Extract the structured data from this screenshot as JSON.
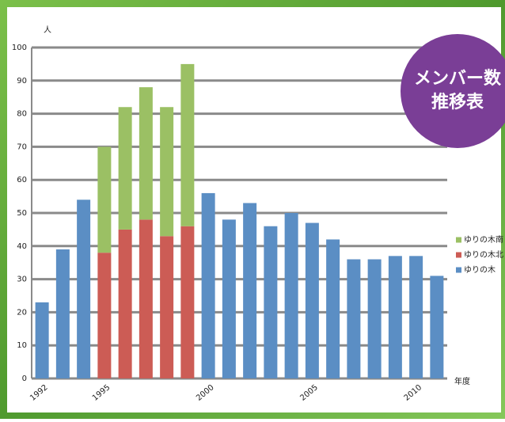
{
  "chart_data": {
    "type": "stacked_bar",
    "title": "メンバー数",
    "subtitle": "推移表",
    "y_label": "人",
    "x_label": "年度",
    "categories": [
      "1992",
      null,
      null,
      "1995",
      null,
      null,
      null,
      null,
      "2000",
      null,
      null,
      null,
      null,
      "2005",
      null,
      null,
      null,
      null,
      "2010",
      null
    ],
    "series": [
      {
        "name": "ゆりの木",
        "color": "#5b8ec4",
        "values": [
          23,
          39,
          54,
          null,
          null,
          null,
          null,
          null,
          56,
          48,
          53,
          46,
          50,
          47,
          42,
          36,
          36,
          37,
          37,
          31
        ]
      },
      {
        "name": "ゆりの木北",
        "color": "#cc5c55",
        "values": [
          null,
          null,
          null,
          38,
          45,
          48,
          43,
          46,
          null,
          null,
          null,
          null,
          null,
          null,
          null,
          null,
          null,
          null,
          null,
          null
        ]
      },
      {
        "name": "ゆりの木南",
        "color": "#9bc064",
        "values": [
          null,
          null,
          null,
          32,
          37,
          40,
          39,
          49,
          null,
          null,
          null,
          null,
          null,
          null,
          null,
          null,
          null,
          null,
          null,
          null
        ]
      }
    ],
    "ylim": [
      0,
      100
    ],
    "yticks": [
      0,
      10,
      20,
      30,
      40,
      50,
      60,
      70,
      80,
      90,
      100
    ],
    "grid": true,
    "legend": "right"
  }
}
